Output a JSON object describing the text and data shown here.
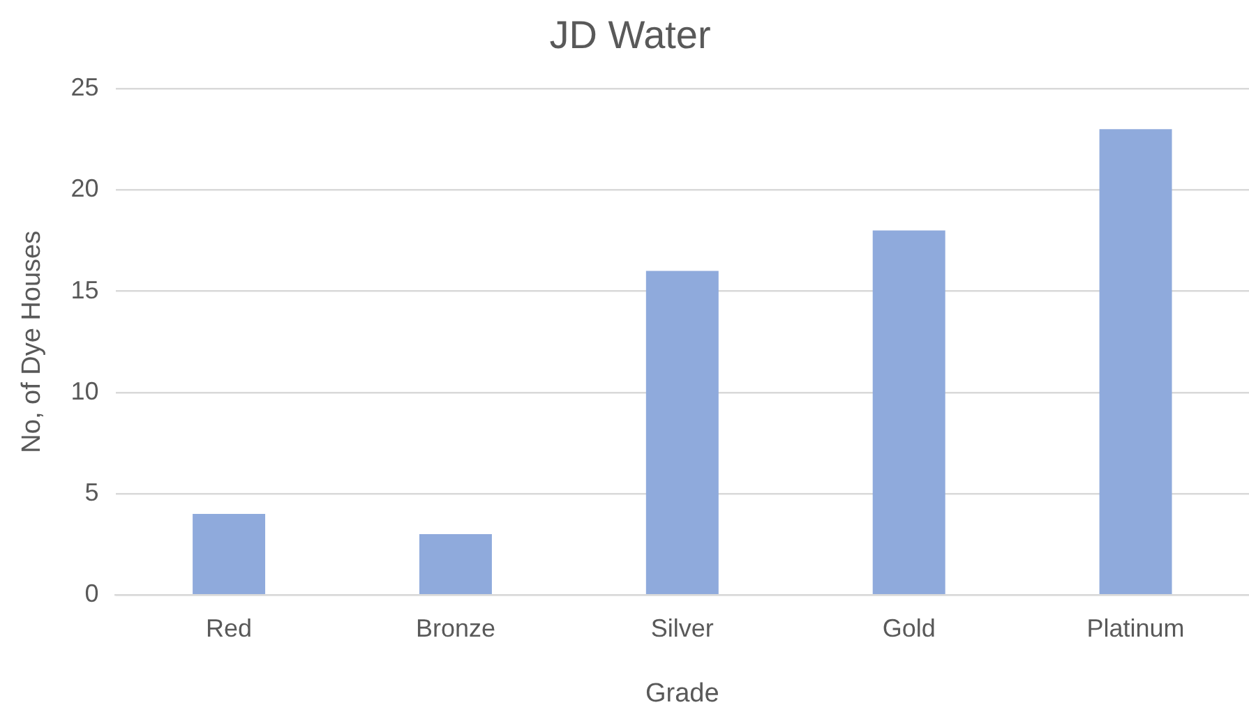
{
  "chart_data": {
    "type": "bar",
    "title": "JD Water",
    "xlabel": "Grade",
    "ylabel": "No, of Dye Houses",
    "categories": [
      "Red",
      "Bronze",
      "Silver",
      "Gold",
      "Platinum"
    ],
    "values": [
      4,
      3,
      16,
      18,
      23
    ],
    "color": "#8faadc",
    "ylim": [
      0,
      25
    ],
    "yticks": [
      0,
      5,
      10,
      15,
      20,
      25
    ],
    "grid": "y",
    "legend": false
  }
}
